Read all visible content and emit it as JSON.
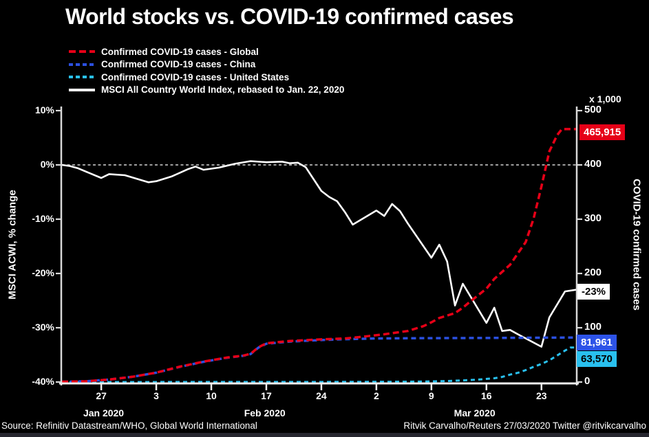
{
  "title": "World stocks vs. COVID-19 confirmed cases",
  "palette": {
    "background": "#000000",
    "text": "#ffffff",
    "axis": "#d9d9d9",
    "red": "#e60017",
    "blue": "#2b50e0",
    "cyan": "#29c0ef",
    "footer_bar": "#26262f"
  },
  "legend": [
    {
      "label": "Confirmed COVID-19 cases - Global",
      "color": "#e60017",
      "style": "dashed",
      "dash": [
        10,
        5
      ]
    },
    {
      "label": "Confirmed COVID-19 cases - China",
      "color": "#2b50e0",
      "style": "dashed",
      "dash": [
        6,
        4
      ]
    },
    {
      "label": "Confirmed COVID-19 cases - United States",
      "color": "#29c0ef",
      "style": "dashed",
      "dash": [
        6,
        4
      ]
    },
    {
      "label": "MSCI All Country World Index, rebased to Jan. 22, 2020",
      "color": "#ffffff",
      "style": "solid",
      "dash": null
    }
  ],
  "left_axis": {
    "label": "MSCI ACWI, % change",
    "tick_labels": [
      "10%",
      "0%",
      "-10%",
      "-20%",
      "-30%",
      "-40%"
    ],
    "tick_values": [
      10,
      0,
      -10,
      -20,
      -30,
      -40
    ]
  },
  "right_axis": {
    "label": "COVID-19 confirmed cases",
    "unit": "x 1,000",
    "tick_labels": [
      "500",
      "400",
      "300",
      "200",
      "100",
      "0"
    ],
    "tick_values": [
      500,
      400,
      300,
      200,
      100,
      0
    ]
  },
  "x_axis": {
    "ticks": [
      {
        "day": 5,
        "label": "27"
      },
      {
        "day": 12,
        "label": "3"
      },
      {
        "day": 19,
        "label": "10"
      },
      {
        "day": 26,
        "label": "17"
      },
      {
        "day": 33,
        "label": "24"
      },
      {
        "day": 40,
        "label": "2"
      },
      {
        "day": 47,
        "label": "9"
      },
      {
        "day": 54,
        "label": "16"
      },
      {
        "day": 61,
        "label": "23"
      }
    ],
    "months": [
      {
        "day": 5.3,
        "label": "Jan 2020"
      },
      {
        "day": 25.8,
        "label": "Feb 2020"
      },
      {
        "day": 52.5,
        "label": "Mar 2020"
      }
    ]
  },
  "value_labels": {
    "global": {
      "text": "465,915",
      "bg": "#e60017",
      "fg": "#ffffff"
    },
    "msci": {
      "text": "-23%",
      "bg": "#ffffff",
      "fg": "#000000"
    },
    "china": {
      "text": "81,961",
      "bg": "#2d53e8",
      "fg": "#ffffff"
    },
    "us": {
      "text": "63,570",
      "bg": "#29c0ef",
      "fg": "#000000"
    }
  },
  "source": "Source: Refinitiv Datastream/WHO, Global World International",
  "credit": "Ritvik Carvalho/Reuters 27/03/2020 Twitter @ritvikcarvalho",
  "chart_data": {
    "type": "line",
    "title": "World stocks vs. COVID-19 confirmed cases",
    "x_unit": "days since 2020-01-22",
    "date_range": [
      "Jan 22, 2020",
      "Mar 27, 2020"
    ],
    "x_range_days": [
      0,
      65.4
    ],
    "left_ylim": [
      -40,
      10
    ],
    "right_ylim": [
      0,
      500
    ],
    "zero_line_dashed": true,
    "legend_position": "top-left",
    "series": [
      {
        "name": "MSCI All Country World Index, rebased to Jan. 22, 2020",
        "axis": "left",
        "unit": "% change",
        "color": "#ffffff",
        "dash": null,
        "width": 2.6,
        "points": [
          [
            0,
            0
          ],
          [
            1,
            -0.2
          ],
          [
            2,
            -0.6
          ],
          [
            5,
            -2.4
          ],
          [
            6,
            -1.7
          ],
          [
            8,
            -1.9
          ],
          [
            11,
            -3.2
          ],
          [
            12,
            -3.0
          ],
          [
            14,
            -2.1
          ],
          [
            16,
            -0.8
          ],
          [
            17,
            -0.3
          ],
          [
            18,
            -0.9
          ],
          [
            20,
            -0.5
          ],
          [
            22,
            0.2
          ],
          [
            24,
            0.7
          ],
          [
            26,
            0.5
          ],
          [
            28,
            0.6
          ],
          [
            29,
            0.3
          ],
          [
            30,
            0.4
          ],
          [
            31,
            -0.4
          ],
          [
            33,
            -4.8
          ],
          [
            34,
            -5.9
          ],
          [
            35,
            -6.7
          ],
          [
            36,
            -8.7
          ],
          [
            37,
            -11.0
          ],
          [
            40,
            -8.4
          ],
          [
            41,
            -9.4
          ],
          [
            42,
            -7.2
          ],
          [
            43,
            -8.5
          ],
          [
            44,
            -10.8
          ],
          [
            47,
            -17.1
          ],
          [
            48,
            -14.7
          ],
          [
            49,
            -17.8
          ],
          [
            50,
            -25.9
          ],
          [
            51,
            -21.9
          ],
          [
            54,
            -29.1
          ],
          [
            55,
            -26.3
          ],
          [
            56,
            -30.6
          ],
          [
            57,
            -30.4
          ],
          [
            58,
            -31.2
          ],
          [
            61,
            -33.5
          ],
          [
            62,
            -28.1
          ],
          [
            63,
            -25.7
          ],
          [
            64,
            -23.3
          ],
          [
            65.4,
            -23.0
          ]
        ]
      },
      {
        "name": "Confirmed COVID-19 cases - United States",
        "axis": "right",
        "unit": "thousands",
        "color": "#29c0ef",
        "dash": [
          6,
          5
        ],
        "width": 3,
        "points": [
          [
            0,
            0
          ],
          [
            20,
            0.1
          ],
          [
            36,
            0.3
          ],
          [
            44,
            0.6
          ],
          [
            47,
            1.2
          ],
          [
            49,
            1.9
          ],
          [
            51,
            3
          ],
          [
            53,
            4.5
          ],
          [
            55,
            7
          ],
          [
            56,
            9.4
          ],
          [
            57,
            13.7
          ],
          [
            58,
            17
          ],
          [
            59,
            22
          ],
          [
            60,
            28
          ],
          [
            61,
            33.3
          ],
          [
            62,
            40
          ],
          [
            63,
            49
          ],
          [
            64,
            58
          ],
          [
            64.7,
            63.6
          ],
          [
            65.4,
            63.6
          ]
        ]
      },
      {
        "name": "Confirmed COVID-19 cases - China",
        "axis": "right",
        "unit": "thousands",
        "color": "#2b50e0",
        "dash": [
          7,
          5
        ],
        "width": 3.5,
        "points": [
          [
            0,
            0.55
          ],
          [
            3,
            1.3
          ],
          [
            6,
            4.5
          ],
          [
            9,
            9.7
          ],
          [
            12,
            17.2
          ],
          [
            15,
            28
          ],
          [
            18,
            37.2
          ],
          [
            21,
            44.8
          ],
          [
            23,
            48.2
          ],
          [
            24,
            51.5
          ],
          [
            25,
            63.5
          ],
          [
            26,
            70.5
          ],
          [
            29,
            74.5
          ],
          [
            33,
            77.3
          ],
          [
            36,
            79
          ],
          [
            40,
            80.2
          ],
          [
            45,
            80.7
          ],
          [
            50,
            81
          ],
          [
            55,
            81.3
          ],
          [
            60,
            81.6
          ],
          [
            65.4,
            82
          ]
        ]
      },
      {
        "name": "Confirmed COVID-19 cases - Global",
        "axis": "right",
        "unit": "thousands",
        "color": "#e60017",
        "dash": [
          9,
          5
        ],
        "width": 3.5,
        "points": [
          [
            0,
            0.6
          ],
          [
            3,
            1.4
          ],
          [
            6,
            4.6
          ],
          [
            9,
            9.8
          ],
          [
            12,
            17.4
          ],
          [
            15,
            28.3
          ],
          [
            18,
            37.6
          ],
          [
            21,
            45.2
          ],
          [
            23,
            48.5
          ],
          [
            24,
            52
          ],
          [
            25,
            64
          ],
          [
            26,
            71.4
          ],
          [
            29,
            75.7
          ],
          [
            33,
            78.6
          ],
          [
            36,
            80.2
          ],
          [
            38,
            83
          ],
          [
            41,
            88
          ],
          [
            44,
            94
          ],
          [
            46,
            103
          ],
          [
            47,
            110
          ],
          [
            48,
            118
          ],
          [
            50,
            127
          ],
          [
            51,
            137
          ],
          [
            52,
            149
          ],
          [
            54,
            172
          ],
          [
            55,
            190
          ],
          [
            57,
            216
          ],
          [
            59,
            258
          ],
          [
            60,
            301
          ],
          [
            61,
            360
          ],
          [
            62,
            425
          ],
          [
            63,
            455
          ],
          [
            63.6,
            466
          ],
          [
            65.4,
            466
          ]
        ]
      }
    ],
    "end_values": {
      "global": "465,915",
      "china": "81,961",
      "united_states": "63,570",
      "msci": "-23%"
    }
  }
}
